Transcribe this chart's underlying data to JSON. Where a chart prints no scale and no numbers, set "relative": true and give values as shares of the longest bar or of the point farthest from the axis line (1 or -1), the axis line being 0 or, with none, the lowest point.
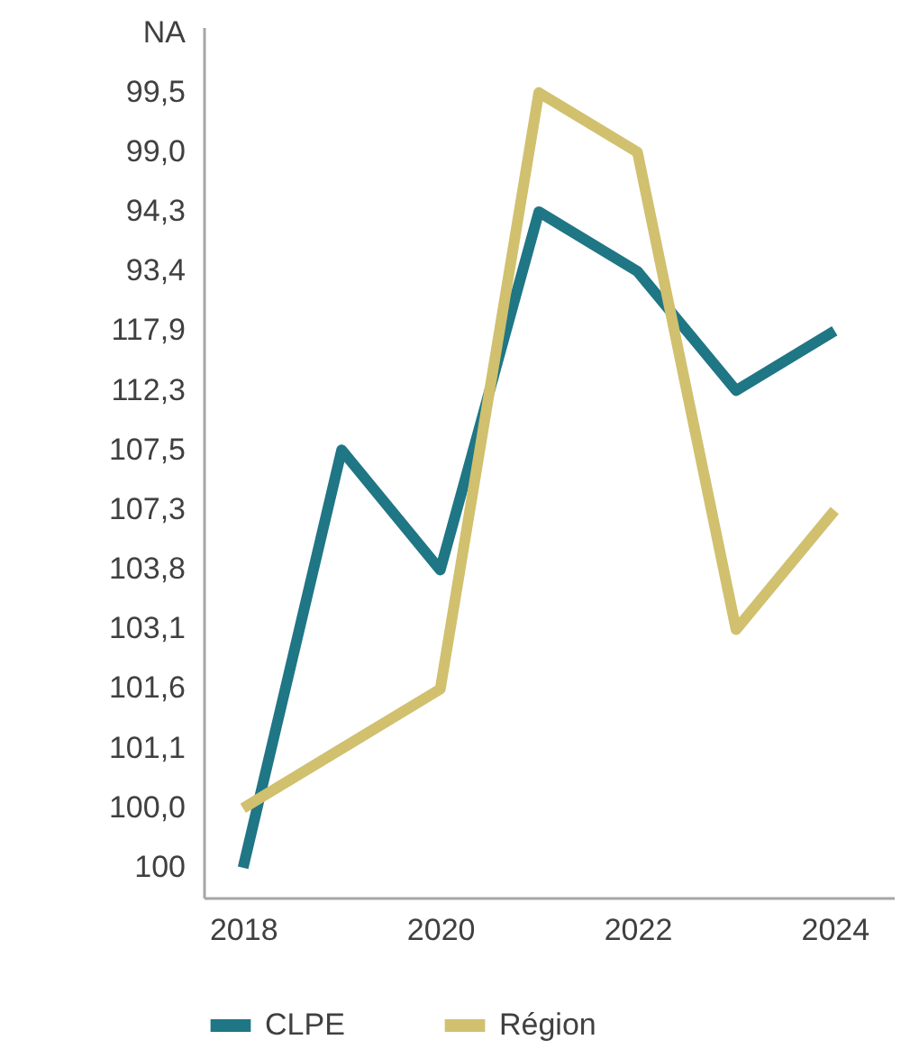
{
  "chart_data": {
    "type": "line",
    "relative": true,
    "x": [
      2018,
      2019,
      2020,
      2021,
      2022,
      2023,
      2024
    ],
    "series": [
      {
        "name": "CLPE",
        "color": "#1f7685",
        "values": [
          0.037,
          0.556,
          0.407,
          0.852,
          0.778,
          0.63,
          0.704
        ]
      },
      {
        "name": "Région",
        "color": "#d1c06e",
        "values": [
          0.111,
          0.185,
          0.259,
          1,
          0.926,
          0.333,
          0.481
        ]
      }
    ],
    "xlim": [
      2017.6,
      2024.6
    ],
    "xticks": [
      2018,
      2020,
      2022,
      2024
    ],
    "annotations": [
      "100",
      "100,0",
      "101,1",
      "101,6",
      "103,1",
      "103,8",
      "107,3",
      "107,5",
      "112,3",
      "117,9",
      "93,4",
      "94,3",
      "99,0",
      "99,5",
      "NA"
    ],
    "grid": false,
    "legend": "bottom",
    "marker": "none",
    "line_style": "solid"
  }
}
